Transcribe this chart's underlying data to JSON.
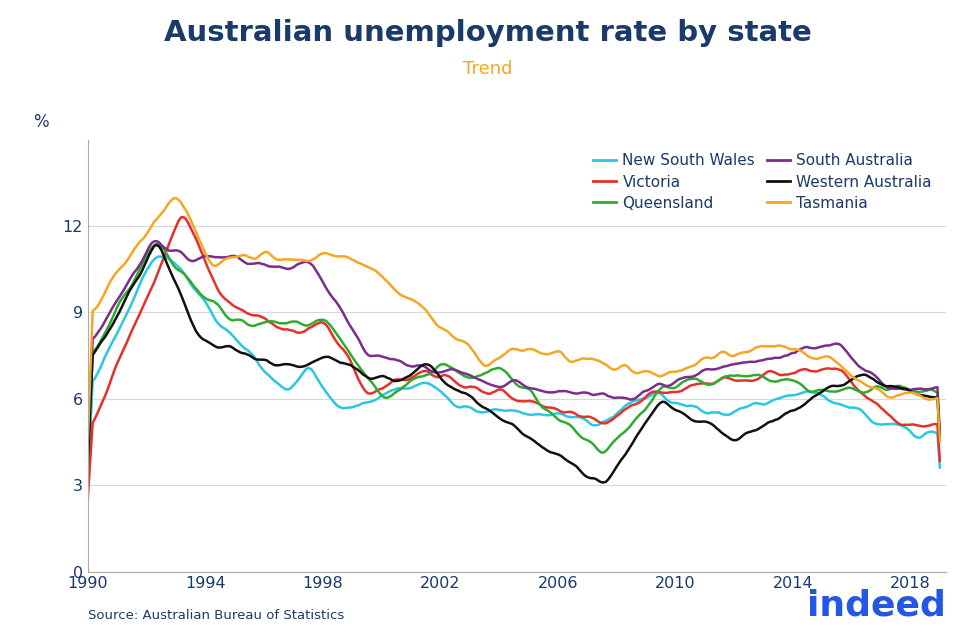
{
  "title": "Australian unemployment rate by state",
  "subtitle": "Trend",
  "ylabel": "%",
  "source": "Source: Australian Bureau of Statistics",
  "title_color": "#1a3a6b",
  "subtitle_color": "#f5a623",
  "source_color": "#1a3a6b",
  "ylabel_color": "#1a3a6b",
  "axis_label_color": "#1a3a6b",
  "background_color": "#ffffff",
  "ylim": [
    0,
    15
  ],
  "yticks": [
    0,
    3,
    6,
    9,
    12
  ],
  "xticks": [
    1990,
    1994,
    1998,
    2002,
    2006,
    2010,
    2014,
    2018
  ],
  "series_order": [
    "New South Wales",
    "Victoria",
    "Queensland",
    "South Australia",
    "Western Australia",
    "Tasmania"
  ],
  "legend_order": [
    "New South Wales",
    "Victoria",
    "Queensland",
    "South Australia",
    "Western Australia",
    "Tasmania"
  ],
  "series": {
    "New South Wales": {
      "color": "#29c8e0",
      "lw": 1.8
    },
    "Victoria": {
      "color": "#e8302a",
      "lw": 1.8
    },
    "Queensland": {
      "color": "#2eac30",
      "lw": 1.8
    },
    "South Australia": {
      "color": "#7b2d8b",
      "lw": 1.8
    },
    "Western Australia": {
      "color": "#111111",
      "lw": 1.8
    },
    "Tasmania": {
      "color": "#f5a623",
      "lw": 1.8
    }
  }
}
